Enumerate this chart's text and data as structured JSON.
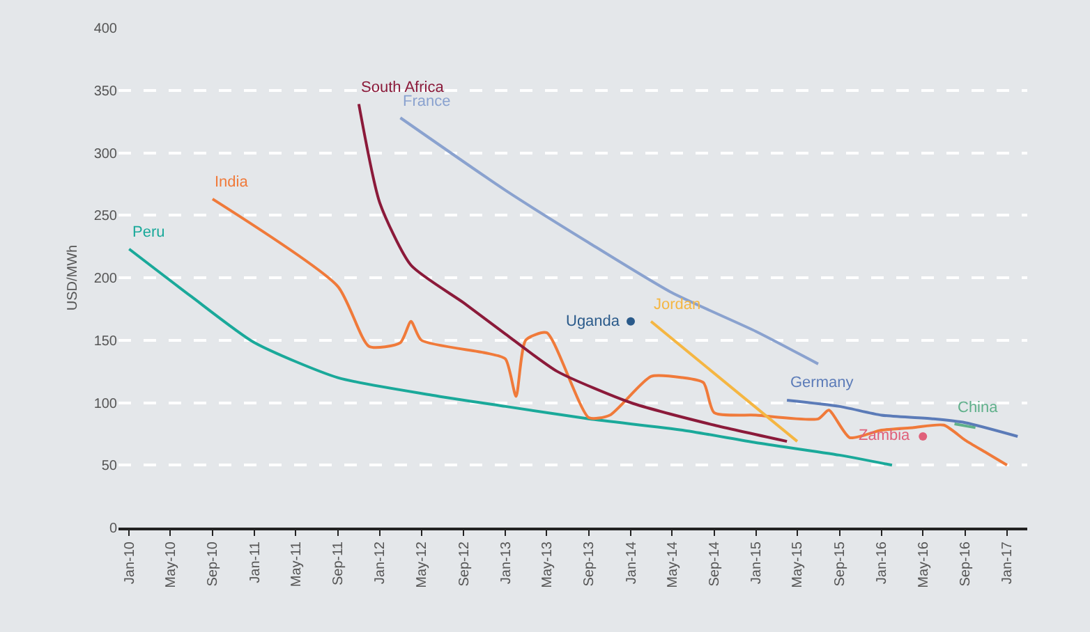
{
  "chart_data": {
    "type": "line",
    "ylabel": "USD/MWh",
    "xlim": [
      "2009-12",
      "2017-03"
    ],
    "ylim": [
      0,
      400
    ],
    "yticks": [
      0,
      50,
      100,
      150,
      200,
      250,
      300,
      350,
      400
    ],
    "xticks": [
      {
        "value": "2010-01",
        "label": "Jan-10"
      },
      {
        "value": "2010-05",
        "label": "May-10"
      },
      {
        "value": "2010-09",
        "label": "Sep-10"
      },
      {
        "value": "2011-01",
        "label": "Jan-11"
      },
      {
        "value": "2011-05",
        "label": "May-11"
      },
      {
        "value": "2011-09",
        "label": "Sep-11"
      },
      {
        "value": "2012-01",
        "label": "Jan-12"
      },
      {
        "value": "2012-05",
        "label": "May-12"
      },
      {
        "value": "2012-09",
        "label": "Sep-12"
      },
      {
        "value": "2013-01",
        "label": "Jan-13"
      },
      {
        "value": "2013-05",
        "label": "May-13"
      },
      {
        "value": "2013-09",
        "label": "Sep-13"
      },
      {
        "value": "2014-01",
        "label": "Jan-14"
      },
      {
        "value": "2014-05",
        "label": "May-14"
      },
      {
        "value": "2014-09",
        "label": "Sep-14"
      },
      {
        "value": "2015-01",
        "label": "Jan-15"
      },
      {
        "value": "2015-05",
        "label": "May-15"
      },
      {
        "value": "2015-09",
        "label": "Sep-15"
      },
      {
        "value": "2016-01",
        "label": "Jan-16"
      },
      {
        "value": "2016-05",
        "label": "May-16"
      },
      {
        "value": "2016-09",
        "label": "Sep-16"
      },
      {
        "value": "2017-01",
        "label": "Jan-17"
      }
    ],
    "grid": "y",
    "legend": false,
    "line_style": "solid",
    "series": [
      {
        "name": "Peru",
        "color": "#1aa99a",
        "x": [
          "2010-01",
          "2010-07",
          "2011-01",
          "2011-09",
          "2012-06",
          "2013-01",
          "2013-09",
          "2014-06",
          "2015-01",
          "2015-09",
          "2016-02"
        ],
        "values": [
          223,
          185,
          148,
          120,
          106,
          97,
          87,
          78,
          68,
          58,
          50
        ]
      },
      {
        "name": "India",
        "color": "#f07a3a",
        "x": [
          "2010-09",
          "2011-09",
          "2011-12",
          "2012-03",
          "2012-04",
          "2012-05",
          "2012-11",
          "2013-01",
          "2013-02",
          "2013-03",
          "2013-05",
          "2013-09",
          "2013-11",
          "2014-03",
          "2014-06",
          "2014-08",
          "2014-09",
          "2015-01",
          "2015-07",
          "2015-08",
          "2015-10",
          "2016-01",
          "2016-04",
          "2016-07",
          "2016-09",
          "2016-11",
          "2017-01"
        ],
        "values": [
          263,
          193,
          145,
          148,
          165,
          150,
          140,
          135,
          105,
          150,
          156,
          88,
          90,
          121,
          120,
          116,
          92,
          90,
          87,
          94,
          72,
          78,
          80,
          82,
          70,
          60,
          50
        ]
      },
      {
        "name": "South Africa",
        "color": "#8b1a3a",
        "x": [
          "2011-11",
          "2012-01",
          "2012-04",
          "2012-09",
          "2013-01",
          "2013-06",
          "2014-01",
          "2014-09",
          "2015-04"
        ],
        "values": [
          339,
          260,
          210,
          180,
          155,
          125,
          100,
          82,
          69
        ]
      },
      {
        "name": "France",
        "color": "#8aa2cf",
        "x": [
          "2012-03",
          "2013-01",
          "2013-09",
          "2014-05",
          "2015-01",
          "2015-07"
        ],
        "values": [
          328,
          270,
          228,
          188,
          157,
          131
        ]
      },
      {
        "name": "Jordan",
        "color": "#f5b642",
        "x": [
          "2014-03",
          "2015-05"
        ],
        "values": [
          165,
          69
        ]
      },
      {
        "name": "Uganda",
        "color": "#2a5a8a",
        "type": "scatter",
        "x": [
          "2014-01"
        ],
        "values": [
          165
        ]
      },
      {
        "name": "Germany",
        "color": "#5b7bb8",
        "x": [
          "2015-04",
          "2015-09",
          "2016-01",
          "2016-06",
          "2016-09",
          "2017-02"
        ],
        "values": [
          102,
          97,
          90,
          87,
          84,
          73
        ]
      },
      {
        "name": "China",
        "color": "#5fb08a",
        "x": [
          "2016-08",
          "2016-10"
        ],
        "values": [
          83,
          80
        ]
      },
      {
        "name": "Zambia",
        "color": "#e0607a",
        "type": "scatter",
        "x": [
          "2016-05"
        ],
        "values": [
          73
        ]
      }
    ]
  }
}
